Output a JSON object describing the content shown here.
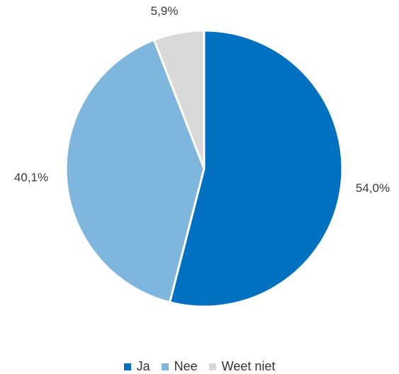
{
  "chart_data": {
    "type": "pie",
    "categories": [
      "Ja",
      "Nee",
      "Weet niet"
    ],
    "values": [
      54.0,
      40.1,
      5.9
    ],
    "labels": [
      "54,0%",
      "40,1%",
      "5,9%"
    ],
    "colors": [
      "#0070C0",
      "#7FB6DD",
      "#D9D9D9"
    ],
    "start": "12 o'clock",
    "direction": "clockwise",
    "legend_position": "bottom"
  }
}
